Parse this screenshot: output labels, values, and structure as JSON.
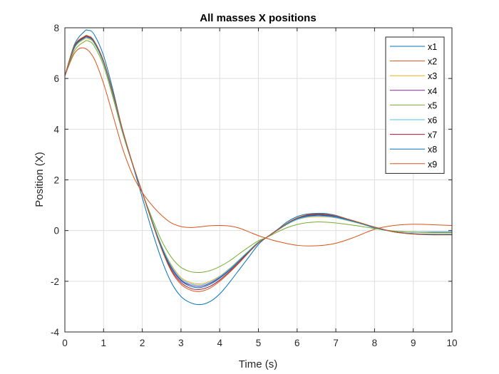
{
  "chart_data": {
    "type": "line",
    "title": "All masses X positions",
    "xlabel": "Time (s)",
    "ylabel": "Position (X)",
    "xlim": [
      0,
      10
    ],
    "ylim": [
      -4,
      8
    ],
    "xticks": [
      0,
      1,
      2,
      3,
      4,
      5,
      6,
      7,
      8,
      9,
      10
    ],
    "yticks": [
      -4,
      -2,
      0,
      2,
      4,
      6,
      8
    ],
    "grid": true,
    "legend_position": "top-right",
    "series": [
      {
        "name": "x1",
        "color": "#0072BD",
        "x": [
          0,
          0.25,
          0.5,
          0.6,
          0.75,
          1,
          1.25,
          1.5,
          1.75,
          2,
          2.25,
          2.5,
          2.75,
          3,
          3.25,
          3.5,
          3.75,
          4,
          4.25,
          4.5,
          4.75,
          5,
          5.2,
          5.5,
          5.75,
          6,
          6.25,
          6.5,
          6.75,
          7,
          7.25,
          7.5,
          7.75,
          8,
          8.25,
          8.5,
          8.75,
          9,
          9.5,
          10
        ],
        "y": [
          6.1,
          7.35,
          7.85,
          7.9,
          7.75,
          6.9,
          5.5,
          3.9,
          2.6,
          1.3,
          0.0,
          -1.15,
          -2.05,
          -2.6,
          -2.85,
          -2.92,
          -2.8,
          -2.5,
          -2.05,
          -1.55,
          -1.05,
          -0.55,
          -0.28,
          0.05,
          0.35,
          0.55,
          0.65,
          0.68,
          0.67,
          0.6,
          0.48,
          0.35,
          0.22,
          0.1,
          0.02,
          -0.03,
          -0.05,
          -0.06,
          -0.06,
          -0.06
        ]
      },
      {
        "name": "x2",
        "color": "#D95319",
        "x": [
          0,
          0.25,
          0.5,
          0.75,
          1,
          1.25,
          1.5,
          1.75,
          2,
          2.25,
          2.5,
          2.75,
          3,
          3.25,
          3.5,
          3.75,
          4,
          4.25,
          4.5,
          4.75,
          5,
          5.2,
          5.5,
          6,
          6.5,
          7,
          7.5,
          8,
          8.5,
          9,
          9.5,
          10
        ],
        "y": [
          6.1,
          7.0,
          7.2,
          6.8,
          5.8,
          4.5,
          3.2,
          2.2,
          1.5,
          1.0,
          0.6,
          0.3,
          0.16,
          0.12,
          0.15,
          0.19,
          0.2,
          0.18,
          0.1,
          -0.05,
          -0.2,
          -0.3,
          -0.43,
          -0.58,
          -0.6,
          -0.5,
          -0.25,
          0.05,
          0.2,
          0.25,
          0.23,
          0.2
        ]
      },
      {
        "name": "x3",
        "color": "#EDB120",
        "x": [
          0,
          0.25,
          0.5,
          0.6,
          0.75,
          1,
          1.25,
          1.5,
          1.75,
          2,
          2.25,
          2.5,
          2.75,
          3,
          3.25,
          3.5,
          3.75,
          4,
          4.25,
          4.5,
          4.75,
          5,
          5.2,
          5.5,
          5.75,
          6,
          6.25,
          6.5,
          6.75,
          7,
          7.5,
          8,
          8.5,
          9,
          9.5,
          10
        ],
        "y": [
          6.1,
          7.2,
          7.55,
          7.56,
          7.4,
          6.6,
          5.3,
          3.85,
          2.6,
          1.5,
          0.4,
          -0.6,
          -1.35,
          -1.85,
          -2.05,
          -2.1,
          -2.0,
          -1.8,
          -1.5,
          -1.15,
          -0.8,
          -0.45,
          -0.28,
          0.02,
          0.25,
          0.43,
          0.52,
          0.55,
          0.54,
          0.5,
          0.32,
          0.12,
          -0.05,
          -0.12,
          -0.14,
          -0.14
        ]
      },
      {
        "name": "x4",
        "color": "#7E2F8E",
        "x": [
          0,
          0.25,
          0.5,
          0.6,
          0.75,
          1,
          1.25,
          1.5,
          1.75,
          2,
          2.25,
          2.5,
          2.75,
          3,
          3.25,
          3.5,
          3.75,
          4,
          4.25,
          4.5,
          4.75,
          5,
          5.2,
          5.5,
          5.75,
          6,
          6.25,
          6.5,
          6.75,
          7,
          7.5,
          8,
          8.5,
          9,
          9.5,
          10
        ],
        "y": [
          6.1,
          7.25,
          7.6,
          7.62,
          7.45,
          6.65,
          5.35,
          3.9,
          2.62,
          1.5,
          0.38,
          -0.65,
          -1.45,
          -1.95,
          -2.15,
          -2.2,
          -2.08,
          -1.85,
          -1.55,
          -1.2,
          -0.82,
          -0.47,
          -0.28,
          0.02,
          0.27,
          0.46,
          0.56,
          0.6,
          0.58,
          0.53,
          0.34,
          0.13,
          -0.05,
          -0.12,
          -0.15,
          -0.15
        ]
      },
      {
        "name": "x5",
        "color": "#77AC30",
        "x": [
          0,
          0.25,
          0.5,
          0.6,
          0.75,
          1,
          1.25,
          1.5,
          1.75,
          2,
          2.25,
          2.5,
          2.75,
          3,
          3.25,
          3.5,
          3.75,
          4,
          4.25,
          4.5,
          4.75,
          5,
          5.2,
          5.5,
          5.75,
          6,
          6.25,
          6.5,
          6.75,
          7,
          7.5,
          8,
          8.5,
          9,
          9.5,
          10
        ],
        "y": [
          6.1,
          7.1,
          7.45,
          7.48,
          7.3,
          6.5,
          5.2,
          3.8,
          2.6,
          1.5,
          0.5,
          -0.4,
          -1.05,
          -1.45,
          -1.62,
          -1.65,
          -1.58,
          -1.42,
          -1.2,
          -0.92,
          -0.65,
          -0.4,
          -0.28,
          -0.05,
          0.12,
          0.24,
          0.31,
          0.34,
          0.33,
          0.3,
          0.2,
          0.08,
          -0.02,
          -0.06,
          -0.08,
          -0.08
        ]
      },
      {
        "name": "x6",
        "color": "#4DBEEE",
        "x": [
          0,
          0.25,
          0.5,
          0.6,
          0.75,
          1,
          1.25,
          1.5,
          1.75,
          2,
          2.25,
          2.5,
          2.75,
          3,
          3.25,
          3.5,
          3.75,
          4,
          4.25,
          4.5,
          4.75,
          5,
          5.2,
          5.5,
          5.75,
          6,
          6.25,
          6.5,
          6.75,
          7,
          7.5,
          8,
          8.5,
          9,
          9.5,
          10
        ],
        "y": [
          6.1,
          7.22,
          7.58,
          7.6,
          7.42,
          6.62,
          5.32,
          3.87,
          2.61,
          1.5,
          0.4,
          -0.62,
          -1.4,
          -1.9,
          -2.1,
          -2.15,
          -2.04,
          -1.82,
          -1.52,
          -1.17,
          -0.81,
          -0.46,
          -0.28,
          0.02,
          0.26,
          0.44,
          0.54,
          0.57,
          0.56,
          0.51,
          0.33,
          0.12,
          -0.05,
          -0.12,
          -0.14,
          -0.14
        ]
      },
      {
        "name": "x7",
        "color": "#A2142F",
        "x": [
          0,
          0.25,
          0.5,
          0.6,
          0.75,
          1,
          1.25,
          1.5,
          1.75,
          2,
          2.25,
          2.5,
          2.75,
          3,
          3.25,
          3.5,
          3.75,
          4,
          4.25,
          4.5,
          4.75,
          5,
          5.2,
          5.5,
          5.75,
          6,
          6.25,
          6.5,
          6.75,
          7,
          7.5,
          8,
          8.5,
          9,
          9.5,
          10
        ],
        "y": [
          6.1,
          7.27,
          7.63,
          7.65,
          7.48,
          6.68,
          5.38,
          3.92,
          2.63,
          1.5,
          0.36,
          -0.7,
          -1.55,
          -2.05,
          -2.28,
          -2.32,
          -2.2,
          -1.95,
          -1.62,
          -1.25,
          -0.85,
          -0.48,
          -0.28,
          0.03,
          0.29,
          0.49,
          0.6,
          0.64,
          0.62,
          0.56,
          0.36,
          0.14,
          -0.05,
          -0.13,
          -0.16,
          -0.16
        ]
      },
      {
        "name": "x8",
        "color": "#0072BD",
        "x": [
          0,
          0.25,
          0.5,
          0.6,
          0.75,
          1,
          1.25,
          1.5,
          1.75,
          2,
          2.25,
          2.5,
          2.75,
          3,
          3.25,
          3.5,
          3.75,
          4,
          4.25,
          4.5,
          4.75,
          5,
          5.2,
          5.5,
          5.75,
          6,
          6.25,
          6.5,
          6.75,
          7,
          7.5,
          8,
          8.5,
          9,
          9.5,
          10
        ],
        "y": [
          6.1,
          7.24,
          7.6,
          7.62,
          7.45,
          6.65,
          5.35,
          3.9,
          2.62,
          1.5,
          0.38,
          -0.66,
          -1.48,
          -1.98,
          -2.2,
          -2.25,
          -2.12,
          -1.88,
          -1.57,
          -1.2,
          -0.83,
          -0.47,
          -0.28,
          0.03,
          0.28,
          0.47,
          0.58,
          0.62,
          0.6,
          0.55,
          0.35,
          0.13,
          -0.05,
          -0.13,
          -0.15,
          -0.15
        ]
      },
      {
        "name": "x9",
        "color": "#D95319",
        "x": [
          0,
          0.25,
          0.5,
          0.6,
          0.75,
          1,
          1.25,
          1.5,
          1.75,
          2,
          2.25,
          2.5,
          2.75,
          3,
          3.25,
          3.5,
          3.75,
          4,
          4.25,
          4.5,
          4.75,
          5,
          5.2,
          5.5,
          5.75,
          6,
          6.25,
          6.5,
          6.75,
          7,
          7.5,
          8,
          8.5,
          9,
          9.5,
          10
        ],
        "y": [
          6.1,
          7.3,
          7.66,
          7.68,
          7.5,
          6.7,
          5.4,
          3.93,
          2.64,
          1.5,
          0.34,
          -0.74,
          -1.6,
          -2.12,
          -2.35,
          -2.4,
          -2.27,
          -2.0,
          -1.66,
          -1.28,
          -0.87,
          -0.49,
          -0.28,
          0.03,
          0.3,
          0.5,
          0.62,
          0.66,
          0.64,
          0.58,
          0.37,
          0.14,
          -0.05,
          -0.14,
          -0.17,
          -0.17
        ]
      }
    ]
  }
}
